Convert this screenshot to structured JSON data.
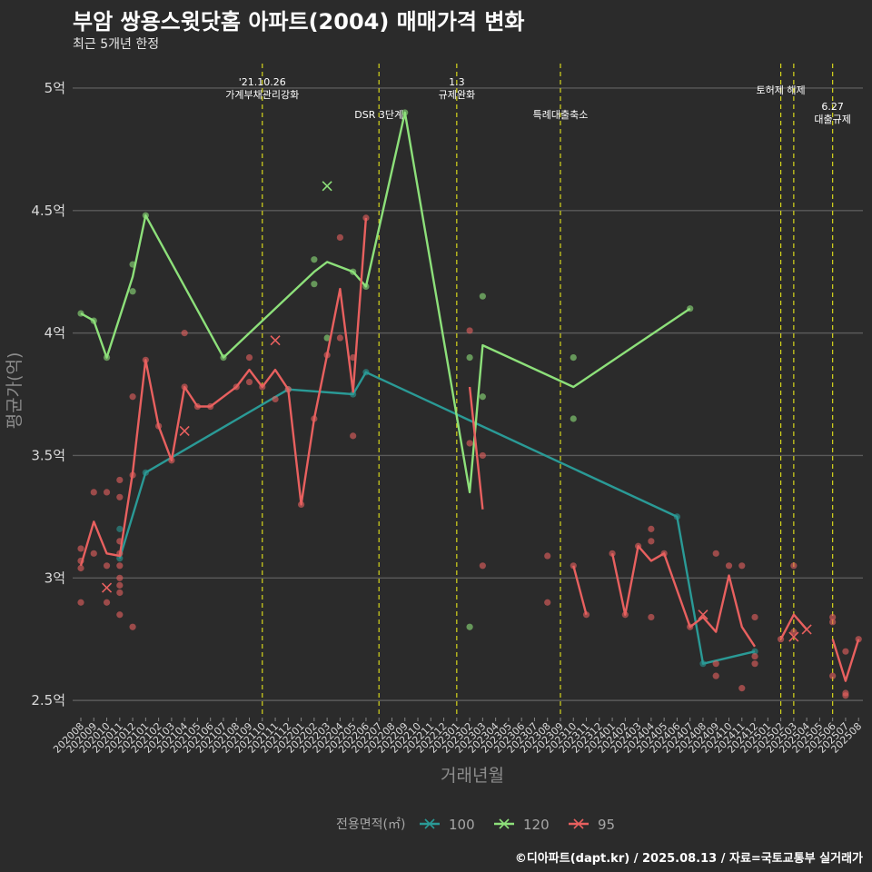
{
  "chart_data": {
    "type": "line",
    "title": "부암 쌍용스윗닷홈 아파트(2004) 매매가격 변화",
    "subtitle": "최근 5개년 한정",
    "xlabel": "거래년월",
    "ylabel": "평균가(억)",
    "caption": "©디아파트(dapt.kr) / 2025.08.13 / 자료=국토교통부 실거래가",
    "ylim": [
      2.43,
      5.1
    ],
    "y_ticks": [
      {
        "value": 2.5,
        "label": "2.5억"
      },
      {
        "value": 3.0,
        "label": "3억"
      },
      {
        "value": 3.5,
        "label": "3.5억"
      },
      {
        "value": 4.0,
        "label": "4억"
      },
      {
        "value": 4.5,
        "label": "4.5억"
      },
      {
        "value": 5.0,
        "label": "5억"
      }
    ],
    "categories": [
      "202008",
      "202009",
      "202010",
      "202011",
      "202012",
      "202101",
      "202102",
      "202103",
      "202104",
      "202105",
      "202106",
      "202107",
      "202108",
      "202109",
      "202110",
      "202111",
      "202112",
      "202201",
      "202202",
      "202203",
      "202204",
      "202205",
      "202206",
      "202207",
      "202208",
      "202209",
      "202210",
      "202211",
      "202212",
      "202301",
      "202302",
      "202303",
      "202304",
      "202305",
      "202306",
      "202307",
      "202308",
      "202309",
      "202310",
      "202311",
      "202312",
      "202401",
      "202402",
      "202403",
      "202404",
      "202405",
      "202406",
      "202407",
      "202408",
      "202409",
      "202410",
      "202411",
      "202412",
      "202501",
      "202502",
      "202503",
      "202504",
      "202505",
      "202506",
      "202507",
      "202508"
    ],
    "grid": true,
    "legend": {
      "title": "전용면적(㎡)",
      "position": "bottom",
      "entries": [
        {
          "name": "100",
          "color": "#2a9a96"
        },
        {
          "name": "120",
          "color": "#8de07a"
        },
        {
          "name": "95",
          "color": "#e8605f"
        }
      ]
    },
    "events": [
      {
        "x": "202110",
        "label": "'21.10.26\n가계부채관리강화",
        "row": 0
      },
      {
        "x": "202207",
        "label": "DSR 3단계",
        "row": 1
      },
      {
        "x": "202301",
        "label": "1.3\n규제완화",
        "row": 0
      },
      {
        "x": "202309",
        "label": "특례대출축소",
        "row": 1
      },
      {
        "x": "202502",
        "label": "토허제 해제",
        "row": 0
      },
      {
        "x": "202503",
        "label": "",
        "row": 0
      },
      {
        "x": "202506",
        "label": "6.27\n대출규제",
        "row": 1
      }
    ],
    "series": [
      {
        "name": "100",
        "color": "#2a9a96",
        "segments": [
          [
            [
              "202011",
              3.08
            ],
            [
              "202101",
              3.43
            ],
            [
              "202112",
              3.77
            ],
            [
              "202205",
              3.75
            ],
            [
              "202206",
              3.84
            ],
            [
              "202406",
              3.25
            ],
            [
              "202408",
              2.65
            ],
            [
              "202412",
              2.7
            ]
          ]
        ],
        "points": [
          {
            "x": "202011",
            "y": 3.08
          },
          {
            "x": "202011",
            "y": 3.2
          },
          {
            "x": "202101",
            "y": 3.43
          },
          {
            "x": "202112",
            "y": 3.77
          },
          {
            "x": "202205",
            "y": 3.75
          },
          {
            "x": "202206",
            "y": 3.84
          },
          {
            "x": "202406",
            "y": 3.25
          },
          {
            "x": "202408",
            "y": 2.65
          },
          {
            "x": "202412",
            "y": 2.7
          }
        ],
        "cancelled": []
      },
      {
        "name": "120",
        "color": "#8de07a",
        "segments": [
          [
            [
              "202008",
              4.08
            ],
            [
              "202009",
              4.05
            ],
            [
              "202010",
              3.9
            ],
            [
              "202012",
              4.23
            ],
            [
              "202101",
              4.48
            ],
            [
              "202107",
              3.9
            ],
            [
              "202202",
              4.25
            ],
            [
              "202203",
              4.29
            ],
            [
              "202205",
              4.25
            ],
            [
              "202206",
              4.19
            ],
            [
              "202209",
              4.9
            ],
            [
              "202302",
              3.35
            ],
            [
              "202303",
              3.95
            ],
            [
              "202310",
              3.78
            ],
            [
              "202407",
              4.1
            ]
          ]
        ],
        "points": [
          {
            "x": "202008",
            "y": 4.08
          },
          {
            "x": "202009",
            "y": 4.05
          },
          {
            "x": "202010",
            "y": 3.9
          },
          {
            "x": "202012",
            "y": 4.28
          },
          {
            "x": "202012",
            "y": 4.17
          },
          {
            "x": "202101",
            "y": 4.48
          },
          {
            "x": "202107",
            "y": 3.9
          },
          {
            "x": "202202",
            "y": 4.3
          },
          {
            "x": "202202",
            "y": 4.2
          },
          {
            "x": "202203",
            "y": 3.98
          },
          {
            "x": "202205",
            "y": 4.25
          },
          {
            "x": "202206",
            "y": 4.19
          },
          {
            "x": "202209",
            "y": 4.9
          },
          {
            "x": "202302",
            "y": 3.9
          },
          {
            "x": "202302",
            "y": 2.8
          },
          {
            "x": "202303",
            "y": 4.15
          },
          {
            "x": "202303",
            "y": 3.74
          },
          {
            "x": "202310",
            "y": 3.9
          },
          {
            "x": "202310",
            "y": 3.65
          },
          {
            "x": "202407",
            "y": 4.1
          }
        ],
        "cancelled": [
          {
            "x": "202203",
            "y": 4.6
          }
        ]
      },
      {
        "name": "95",
        "color": "#e8605f",
        "segments": [
          [
            [
              "202008",
              3.05
            ],
            [
              "202009",
              3.23
            ],
            [
              "202010",
              3.1
            ],
            [
              "202011",
              3.09
            ],
            [
              "202012",
              3.43
            ],
            [
              "202101",
              3.89
            ],
            [
              "202102",
              3.62
            ],
            [
              "202103",
              3.48
            ],
            [
              "202104",
              3.78
            ],
            [
              "202105",
              3.7
            ],
            [
              "202106",
              3.7
            ],
            [
              "202108",
              3.78
            ],
            [
              "202109",
              3.85
            ],
            [
              "202110",
              3.78
            ],
            [
              "202111",
              3.85
            ],
            [
              "202112",
              3.77
            ],
            [
              "202201",
              3.3
            ],
            [
              "202202",
              3.65
            ],
            [
              "202203",
              3.91
            ],
            [
              "202204",
              4.18
            ],
            [
              "202205",
              3.76
            ],
            [
              "202206",
              4.47
            ]
          ],
          [
            [
              "202302",
              3.78
            ],
            [
              "202303",
              3.28
            ]
          ],
          [
            [
              "202310",
              3.05
            ],
            [
              "202311",
              2.85
            ]
          ],
          [
            [
              "202401",
              3.1
            ],
            [
              "202402",
              2.85
            ],
            [
              "202403",
              3.13
            ],
            [
              "202404",
              3.07
            ],
            [
              "202405",
              3.1
            ],
            [
              "202407",
              2.8
            ],
            [
              "202408",
              2.84
            ],
            [
              "202409",
              2.78
            ],
            [
              "202410",
              3.01
            ],
            [
              "202411",
              2.8
            ],
            [
              "202412",
              2.72
            ]
          ],
          [
            [
              "202502",
              2.75
            ],
            [
              "202503",
              2.85
            ],
            [
              "202504",
              2.79
            ]
          ],
          [
            [
              "202506",
              2.75
            ],
            [
              "202507",
              2.58
            ],
            [
              "202508",
              2.75
            ]
          ]
        ],
        "points": [
          {
            "x": "202008",
            "y": 3.12
          },
          {
            "x": "202008",
            "y": 3.07
          },
          {
            "x": "202008",
            "y": 3.04
          },
          {
            "x": "202008",
            "y": 2.9
          },
          {
            "x": "202009",
            "y": 3.35
          },
          {
            "x": "202009",
            "y": 3.1
          },
          {
            "x": "202010",
            "y": 3.35
          },
          {
            "x": "202010",
            "y": 3.05
          },
          {
            "x": "202010",
            "y": 2.9
          },
          {
            "x": "202011",
            "y": 3.4
          },
          {
            "x": "202011",
            "y": 3.33
          },
          {
            "x": "202011",
            "y": 3.15
          },
          {
            "x": "202011",
            "y": 3.1
          },
          {
            "x": "202011",
            "y": 3.05
          },
          {
            "x": "202011",
            "y": 3.0
          },
          {
            "x": "202011",
            "y": 2.97
          },
          {
            "x": "202011",
            "y": 2.94
          },
          {
            "x": "202011",
            "y": 2.85
          },
          {
            "x": "202012",
            "y": 3.74
          },
          {
            "x": "202012",
            "y": 3.42
          },
          {
            "x": "202012",
            "y": 2.8
          },
          {
            "x": "202101",
            "y": 3.89
          },
          {
            "x": "202102",
            "y": 3.62
          },
          {
            "x": "202103",
            "y": 3.48
          },
          {
            "x": "202104",
            "y": 4.0
          },
          {
            "x": "202104",
            "y": 3.78
          },
          {
            "x": "202105",
            "y": 3.7
          },
          {
            "x": "202106",
            "y": 3.7
          },
          {
            "x": "202108",
            "y": 3.78
          },
          {
            "x": "202109",
            "y": 3.9
          },
          {
            "x": "202109",
            "y": 3.8
          },
          {
            "x": "202110",
            "y": 3.78
          },
          {
            "x": "202111",
            "y": 3.73
          },
          {
            "x": "202112",
            "y": 3.77
          },
          {
            "x": "202201",
            "y": 3.3
          },
          {
            "x": "202202",
            "y": 3.65
          },
          {
            "x": "202203",
            "y": 3.91
          },
          {
            "x": "202204",
            "y": 4.39
          },
          {
            "x": "202204",
            "y": 3.98
          },
          {
            "x": "202205",
            "y": 3.9
          },
          {
            "x": "202205",
            "y": 3.58
          },
          {
            "x": "202206",
            "y": 4.47
          },
          {
            "x": "202302",
            "y": 4.01
          },
          {
            "x": "202302",
            "y": 3.55
          },
          {
            "x": "202303",
            "y": 3.5
          },
          {
            "x": "202303",
            "y": 3.05
          },
          {
            "x": "202308",
            "y": 3.09
          },
          {
            "x": "202308",
            "y": 2.9
          },
          {
            "x": "202310",
            "y": 3.05
          },
          {
            "x": "202311",
            "y": 2.85
          },
          {
            "x": "202401",
            "y": 3.1
          },
          {
            "x": "202402",
            "y": 2.85
          },
          {
            "x": "202403",
            "y": 3.13
          },
          {
            "x": "202404",
            "y": 3.2
          },
          {
            "x": "202404",
            "y": 3.15
          },
          {
            "x": "202404",
            "y": 2.84
          },
          {
            "x": "202405",
            "y": 3.1
          },
          {
            "x": "202407",
            "y": 2.8
          },
          {
            "x": "202409",
            "y": 3.1
          },
          {
            "x": "202409",
            "y": 2.65
          },
          {
            "x": "202409",
            "y": 2.6
          },
          {
            "x": "202410",
            "y": 3.05
          },
          {
            "x": "202411",
            "y": 3.05
          },
          {
            "x": "202411",
            "y": 2.55
          },
          {
            "x": "202412",
            "y": 2.84
          },
          {
            "x": "202412",
            "y": 2.68
          },
          {
            "x": "202412",
            "y": 2.65
          },
          {
            "x": "202502",
            "y": 2.75
          },
          {
            "x": "202503",
            "y": 3.05
          },
          {
            "x": "202503",
            "y": 2.78
          },
          {
            "x": "202506",
            "y": 2.84
          },
          {
            "x": "202506",
            "y": 2.82
          },
          {
            "x": "202506",
            "y": 2.6
          },
          {
            "x": "202507",
            "y": 2.7
          },
          {
            "x": "202507",
            "y": 2.53
          },
          {
            "x": "202507",
            "y": 2.52
          },
          {
            "x": "202508",
            "y": 2.75
          }
        ],
        "cancelled": [
          {
            "x": "202010",
            "y": 2.96
          },
          {
            "x": "202104",
            "y": 3.6
          },
          {
            "x": "202111",
            "y": 3.97
          },
          {
            "x": "202408",
            "y": 2.85
          },
          {
            "x": "202503",
            "y": 2.76
          },
          {
            "x": "202504",
            "y": 2.79
          }
        ]
      }
    ]
  }
}
